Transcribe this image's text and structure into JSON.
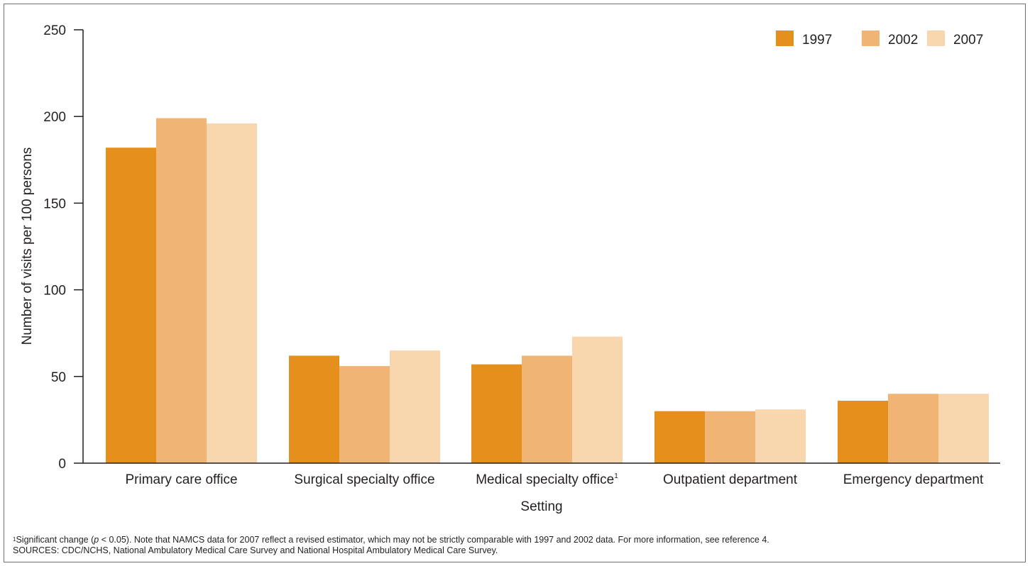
{
  "chart_data": {
    "type": "bar",
    "title": "",
    "xlabel": "Setting",
    "ylabel": "Number of visits per 100 persons",
    "ylim": [
      0,
      250
    ],
    "yticks": [
      0,
      50,
      100,
      150,
      200,
      250
    ],
    "grid": false,
    "legend_position": "top-right",
    "categories": [
      "Primary care office",
      "Surgical specialty office",
      "Medical specialty office",
      "Outpatient department",
      "Emergency department"
    ],
    "category_superscripts": [
      "",
      "",
      "1",
      "",
      ""
    ],
    "series": [
      {
        "name": "1997",
        "color": "#e5901c",
        "values": [
          182,
          62,
          57,
          30,
          36
        ]
      },
      {
        "name": "2002",
        "color": "#f0b574",
        "values": [
          199,
          56,
          62,
          30,
          40
        ]
      },
      {
        "name": "2007",
        "color": "#f8d6ae",
        "values": [
          196,
          65,
          73,
          31,
          40
        ]
      }
    ]
  },
  "footnotes": {
    "note_marker": "1",
    "note_text_before_p": "Significant change (",
    "note_p": "p",
    "note_text_after_p": " < 0.05). Note that NAMCS data for 2007 reflect a revised estimator, which may not be strictly comparable with 1997 and 2002 data. For more information, see reference 4.",
    "sources": "SOURCES: CDC/NCHS, National Ambulatory Medical Care Survey and National Hospital Ambulatory Medical Care Survey."
  }
}
